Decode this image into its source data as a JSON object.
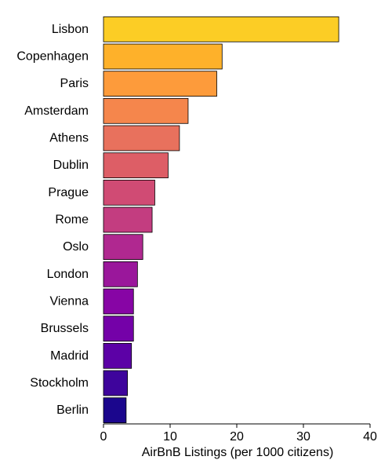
{
  "chart_data": {
    "type": "bar",
    "orientation": "horizontal",
    "categories": [
      "Lisbon",
      "Copenhagen",
      "Paris",
      "Amsterdam",
      "Athens",
      "Dublin",
      "Prague",
      "Rome",
      "Oslo",
      "London",
      "Vienna",
      "Brussels",
      "Madrid",
      "Stockholm",
      "Berlin"
    ],
    "values": [
      35.3,
      17.8,
      17.0,
      12.7,
      11.4,
      9.7,
      7.7,
      7.3,
      5.9,
      5.1,
      4.5,
      4.5,
      4.2,
      3.6,
      3.4
    ],
    "colors": [
      "#fccd25",
      "#feb12a",
      "#fd9b3b",
      "#f5864c",
      "#e8715d",
      "#dd5e66",
      "#d04b74",
      "#c33d80",
      "#b02890",
      "#9a179b",
      "#8705a5",
      "#7401a8",
      "#5c01a6",
      "#3e049c",
      "#1b068d"
    ],
    "title": "",
    "xlabel": "AirBnB Listings (per 1000 citizens)",
    "ylabel": "",
    "xlim": [
      0,
      40
    ],
    "xticks": [
      0,
      10,
      20,
      30,
      40
    ],
    "grid": false,
    "legend": "none"
  }
}
